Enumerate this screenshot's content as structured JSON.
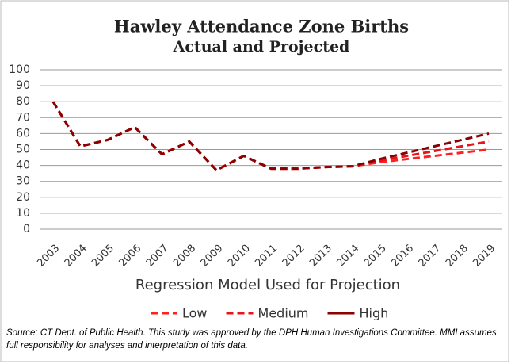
{
  "chart_data": {
    "type": "line",
    "title": "Hawley Attendance Zone Births",
    "subtitle": "Actual and Projected",
    "x_label": "Regression Model Used for Projection",
    "source": "Source: CT Dept. of Public Health. This study was approved by the DPH Human Investigations Committee. MMI assumes full responsibility for analyses and interpretation of this data.",
    "categories": [
      "2003",
      "2004",
      "2005",
      "2006",
      "2007",
      "2008",
      "2009",
      "2010",
      "2011",
      "2012",
      "2013",
      "2014",
      "2015",
      "2016",
      "2017",
      "2018",
      "2019"
    ],
    "series": [
      {
        "name": "Low",
        "color": "#ff2020",
        "dash": true,
        "values": [
          80,
          52,
          56,
          64,
          47,
          55,
          37,
          46,
          38,
          38,
          39,
          39.5,
          42,
          44,
          46,
          48,
          50
        ]
      },
      {
        "name": "Medium",
        "color": "#e8141a",
        "dash": true,
        "values": [
          80,
          52,
          56,
          64,
          47,
          55,
          37,
          46,
          38,
          38,
          39,
          39.5,
          43,
          46,
          49,
          52,
          55
        ]
      },
      {
        "name": "High",
        "color": "#8b0000",
        "dash": false,
        "values": [
          80,
          52,
          56,
          64,
          47,
          55,
          37,
          46,
          38,
          38,
          39,
          39.5,
          44,
          48,
          52,
          56,
          60
        ]
      }
    ],
    "ylim": [
      0,
      100
    ],
    "yticks": [
      0,
      10,
      20,
      30,
      40,
      50,
      60,
      70,
      80,
      90,
      100
    ],
    "grid": true
  }
}
